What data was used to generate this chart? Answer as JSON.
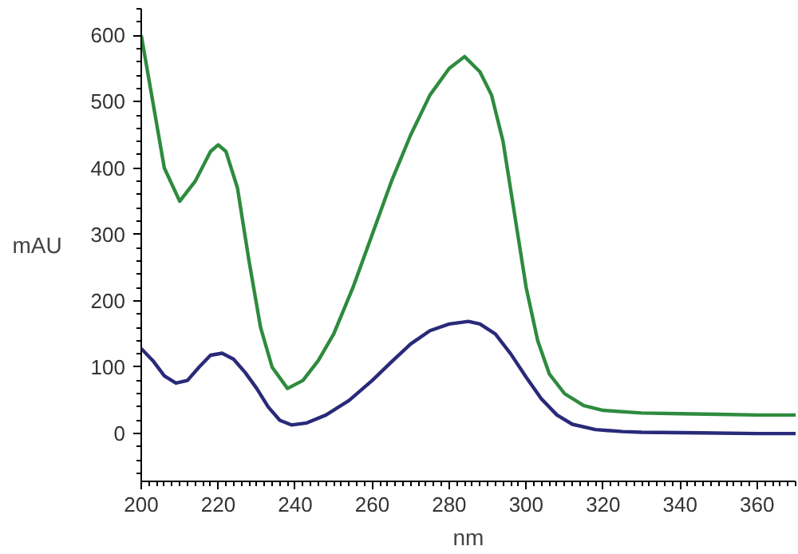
{
  "chart_data": {
    "type": "line",
    "xlabel": "nm",
    "ylabel": "mAU",
    "xlim": [
      200,
      370
    ],
    "ylim": [
      -72,
      640
    ],
    "xticks": [
      200,
      220,
      240,
      260,
      280,
      300,
      320,
      340,
      360
    ],
    "yticks": [
      0,
      100,
      200,
      300,
      400,
      500,
      600
    ],
    "grid": false,
    "marker": "none",
    "line_style": "solid",
    "series": [
      {
        "color": "#2e8b3e",
        "x": [
          200,
          203,
          206,
          210,
          214,
          218,
          220,
          222,
          225,
          228,
          231,
          234,
          238,
          242,
          246,
          250,
          255,
          260,
          265,
          270,
          275,
          280,
          284,
          288,
          291,
          294,
          297,
          300,
          303,
          306,
          310,
          315,
          320,
          330,
          340,
          350,
          360,
          370
        ],
        "values": [
          600,
          500,
          400,
          350,
          380,
          425,
          435,
          425,
          370,
          260,
          160,
          100,
          68,
          80,
          110,
          150,
          220,
          300,
          380,
          450,
          510,
          550,
          568,
          545,
          510,
          440,
          330,
          220,
          140,
          90,
          60,
          42,
          35,
          31,
          30,
          29,
          28,
          28
        ]
      },
      {
        "color": "#2a2a7a",
        "x": [
          200,
          203,
          206,
          209,
          212,
          215,
          218,
          221,
          224,
          227,
          230,
          233,
          236,
          239,
          243,
          248,
          254,
          260,
          265,
          270,
          275,
          280,
          285,
          288,
          292,
          296,
          300,
          304,
          308,
          312,
          318,
          325,
          330,
          345,
          360,
          370
        ],
        "values": [
          128,
          110,
          87,
          76,
          80,
          100,
          118,
          121,
          112,
          92,
          68,
          40,
          20,
          13,
          16,
          28,
          50,
          80,
          108,
          135,
          155,
          165,
          169,
          165,
          150,
          120,
          85,
          52,
          28,
          14,
          6,
          3,
          2,
          1,
          0,
          0
        ]
      }
    ]
  }
}
